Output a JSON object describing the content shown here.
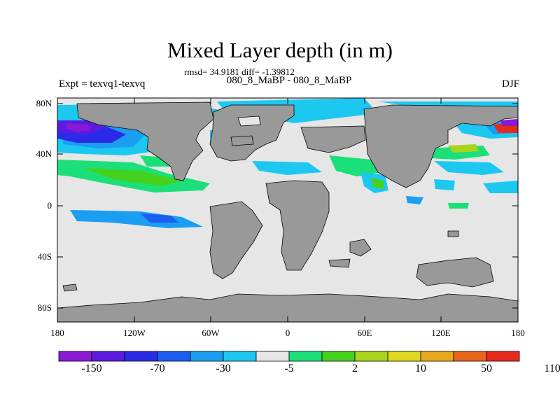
{
  "title": "Mixed Layer depth (in m)",
  "stats": "rmsd= 34.9181 diff= -1.39812",
  "experiment_names": "080_8_MaBP - 080_8_MaBP",
  "left_label": "Expt = texvq1-texvq",
  "right_label": "DJF",
  "axes": {
    "y_ticks": [
      "80N",
      "40N",
      "0",
      "40S",
      "80S"
    ],
    "x_ticks": [
      "180",
      "120W",
      "60W",
      "0",
      "60E",
      "120E",
      "180"
    ]
  },
  "colorbar": {
    "colors": [
      "#8a19d6",
      "#5c1ae0",
      "#2a2ae8",
      "#1c5ff0",
      "#1a9ef2",
      "#1cc8f0",
      "#e6e6e6",
      "#1be07a",
      "#45d21c",
      "#a8d41c",
      "#e0d81c",
      "#e8a81c",
      "#e8661c",
      "#e82a1c"
    ],
    "labels": [
      "-150",
      "-70",
      "-30",
      "-5",
      "2",
      "10",
      "50",
      "110"
    ]
  },
  "colors": {
    "land": "#999999",
    "background_ocean": "#e6e6e6"
  }
}
